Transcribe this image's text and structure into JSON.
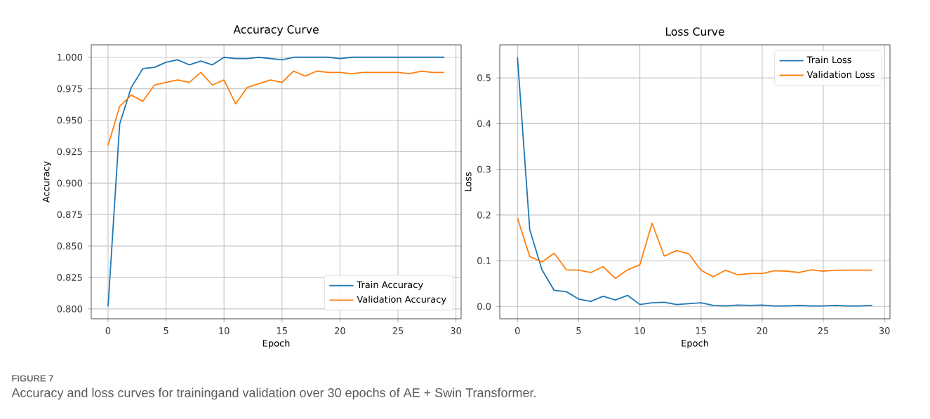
{
  "chart_data": [
    {
      "type": "line",
      "title": "Accuracy Curve",
      "xlabel": "Epoch",
      "ylabel": "Accuracy",
      "x": [
        0,
        1,
        2,
        3,
        4,
        5,
        6,
        7,
        8,
        9,
        10,
        11,
        12,
        13,
        14,
        15,
        16,
        17,
        18,
        19,
        20,
        21,
        22,
        23,
        24,
        25,
        26,
        27,
        28,
        29
      ],
      "series": [
        {
          "name": "Train Accuracy",
          "color": "#1f77b4",
          "values": [
            0.802,
            0.947,
            0.976,
            0.991,
            0.992,
            0.996,
            0.998,
            0.994,
            0.997,
            0.994,
            1.0,
            0.999,
            0.999,
            1.0,
            0.999,
            0.998,
            1.0,
            1.0,
            1.0,
            1.0,
            0.999,
            1.0,
            1.0,
            1.0,
            1.0,
            1.0,
            1.0,
            1.0,
            1.0,
            1.0
          ]
        },
        {
          "name": "Validation Accuracy",
          "color": "#ff7f0e",
          "values": [
            0.93,
            0.961,
            0.97,
            0.965,
            0.978,
            0.98,
            0.982,
            0.98,
            0.988,
            0.978,
            0.982,
            0.963,
            0.976,
            0.979,
            0.982,
            0.98,
            0.989,
            0.985,
            0.989,
            0.988,
            0.988,
            0.987,
            0.988,
            0.988,
            0.988,
            0.988,
            0.987,
            0.989,
            0.988,
            0.988
          ]
        }
      ],
      "xlim": [
        -1.45,
        30.45
      ],
      "xticks": [
        0,
        5,
        10,
        15,
        20,
        25,
        30
      ],
      "ylim": [
        0.7921,
        1.0099
      ],
      "yticks": [
        {
          "value": 0.8,
          "label": "0.800"
        },
        {
          "value": 0.825,
          "label": "0.825"
        },
        {
          "value": 0.85,
          "label": "0.850"
        },
        {
          "value": 0.875,
          "label": "0.875"
        },
        {
          "value": 0.9,
          "label": "0.900"
        },
        {
          "value": 0.925,
          "label": "0.925"
        },
        {
          "value": 0.95,
          "label": "0.950"
        },
        {
          "value": 0.975,
          "label": "0.975"
        },
        {
          "value": 1.0,
          "label": "1.000"
        }
      ],
      "grid": true,
      "legend": "bottom right",
      "annotations": [
        "FIGURE 7",
        "Accuracy and loss curves for trainingand validation over 30 epochs of AE + Swin Transformer."
      ]
    },
    {
      "type": "line",
      "title": "Loss Curve",
      "xlabel": "Epoch",
      "ylabel": "Loss",
      "x": [
        0,
        1,
        2,
        3,
        4,
        5,
        6,
        7,
        8,
        9,
        10,
        11,
        12,
        13,
        14,
        15,
        16,
        17,
        18,
        19,
        20,
        21,
        22,
        23,
        24,
        25,
        26,
        27,
        28,
        29
      ],
      "series": [
        {
          "name": "Train Loss",
          "color": "#1f77b4",
          "values": [
            0.545,
            0.168,
            0.08,
            0.035,
            0.032,
            0.016,
            0.011,
            0.022,
            0.014,
            0.024,
            0.004,
            0.008,
            0.009,
            0.004,
            0.006,
            0.008,
            0.002,
            0.001,
            0.003,
            0.002,
            0.003,
            0.001,
            0.001,
            0.002,
            0.001,
            0.001,
            0.002,
            0.001,
            0.001,
            0.002
          ]
        },
        {
          "name": "Validation Loss",
          "color": "#ff7f0e",
          "values": [
            0.193,
            0.109,
            0.097,
            0.116,
            0.08,
            0.079,
            0.074,
            0.087,
            0.061,
            0.08,
            0.091,
            0.182,
            0.11,
            0.122,
            0.115,
            0.079,
            0.065,
            0.079,
            0.069,
            0.072,
            0.072,
            0.078,
            0.077,
            0.074,
            0.08,
            0.077,
            0.079,
            0.079,
            0.079,
            0.079
          ]
        }
      ],
      "xlim": [
        -1.45,
        30.45
      ],
      "xticks": [
        0,
        5,
        10,
        15,
        20,
        25,
        30
      ],
      "ylim": [
        -0.0272,
        0.5722
      ],
      "yticks": [
        {
          "value": 0.0,
          "label": "0.0"
        },
        {
          "value": 0.1,
          "label": "0.1"
        },
        {
          "value": 0.2,
          "label": "0.2"
        },
        {
          "value": 0.3,
          "label": "0.3"
        },
        {
          "value": 0.4,
          "label": "0.4"
        },
        {
          "value": 0.5,
          "label": "0.5"
        }
      ],
      "grid": true,
      "legend": "top right"
    }
  ]
}
